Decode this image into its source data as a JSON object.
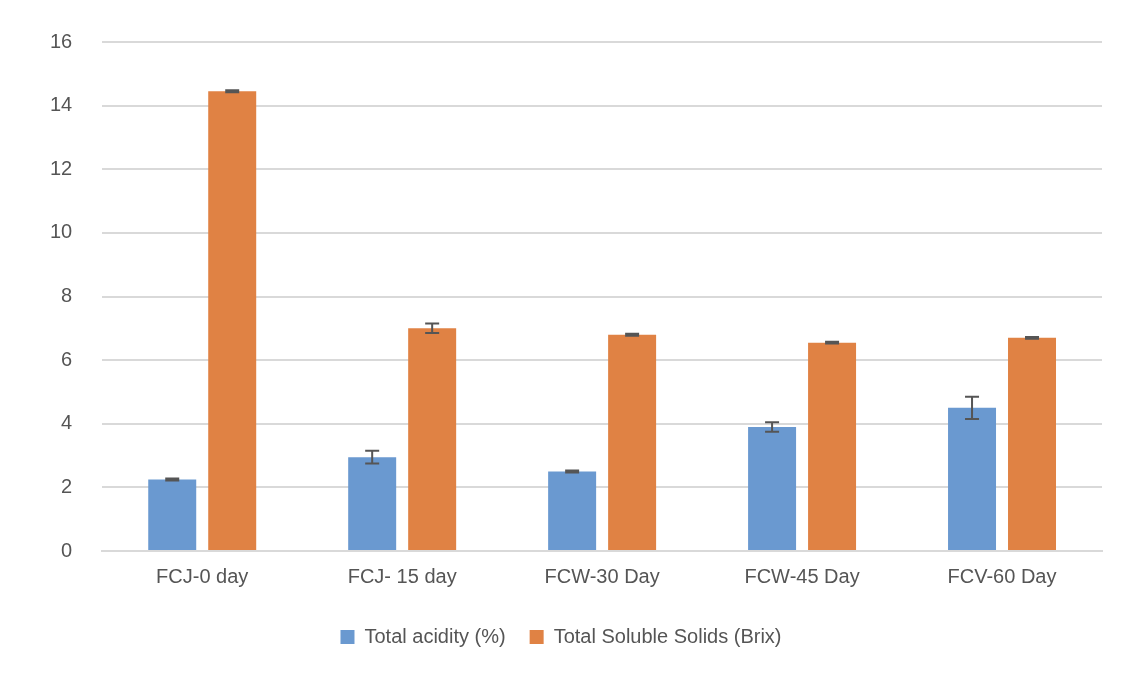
{
  "chart_data": {
    "type": "bar",
    "categories": [
      "FCJ-0 day",
      "FCJ- 15 day",
      "FCW-30 Day",
      "FCW-45 Day",
      "FCV-60 Day"
    ],
    "series": [
      {
        "name": "Total acidity (%)",
        "color": "#6a99d0",
        "values": [
          2.25,
          2.95,
          2.5,
          3.9,
          4.5
        ],
        "errors": [
          0.03,
          0.2,
          0.03,
          0.15,
          0.35
        ]
      },
      {
        "name": "Total Soluble Solids (Brix)",
        "color": "#e08244",
        "values": [
          14.45,
          7.0,
          6.8,
          6.55,
          6.7
        ],
        "errors": [
          0.03,
          0.15,
          0.03,
          0.03,
          0.03
        ]
      }
    ],
    "ylim": [
      0,
      16
    ],
    "yticks": [
      0,
      2,
      4,
      6,
      8,
      10,
      12,
      14,
      16
    ],
    "grid": "y",
    "legend": "bottom"
  }
}
